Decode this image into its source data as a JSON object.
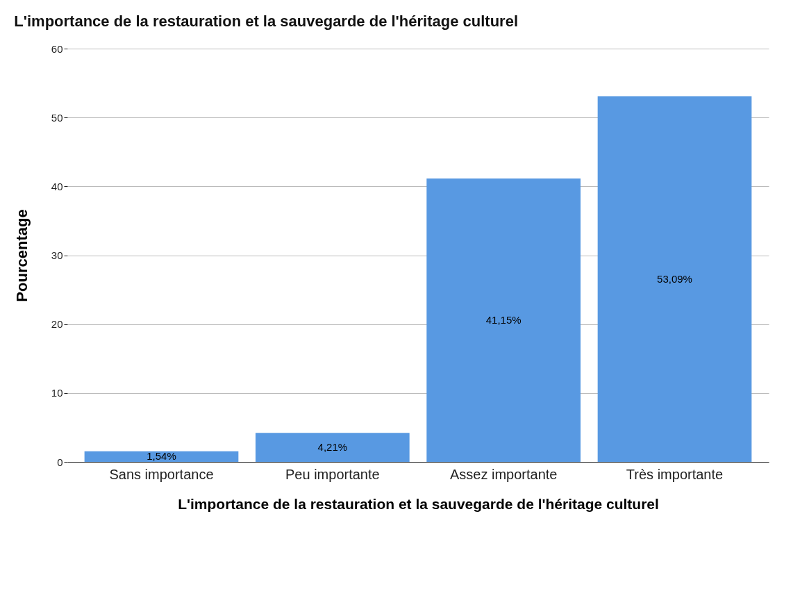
{
  "chart_data": {
    "type": "bar",
    "title": "L'importance de la restauration et la sauvegarde de l'héritage culturel",
    "xlabel": "L'importance de la restauration et la sauvegarde de l'héritage culturel",
    "ylabel": "Pourcentage",
    "categories": [
      "Sans importance",
      "Peu importante",
      "Assez importante",
      "Très importante"
    ],
    "values": [
      1.54,
      4.21,
      41.15,
      53.09
    ],
    "value_labels": [
      "1,54%",
      "4,21%",
      "41,15%",
      "53,09%"
    ],
    "color": "#5899e2",
    "ylim": [
      0,
      60
    ],
    "yticks": [
      0,
      10,
      20,
      30,
      40,
      50,
      60
    ],
    "grid": "y"
  }
}
